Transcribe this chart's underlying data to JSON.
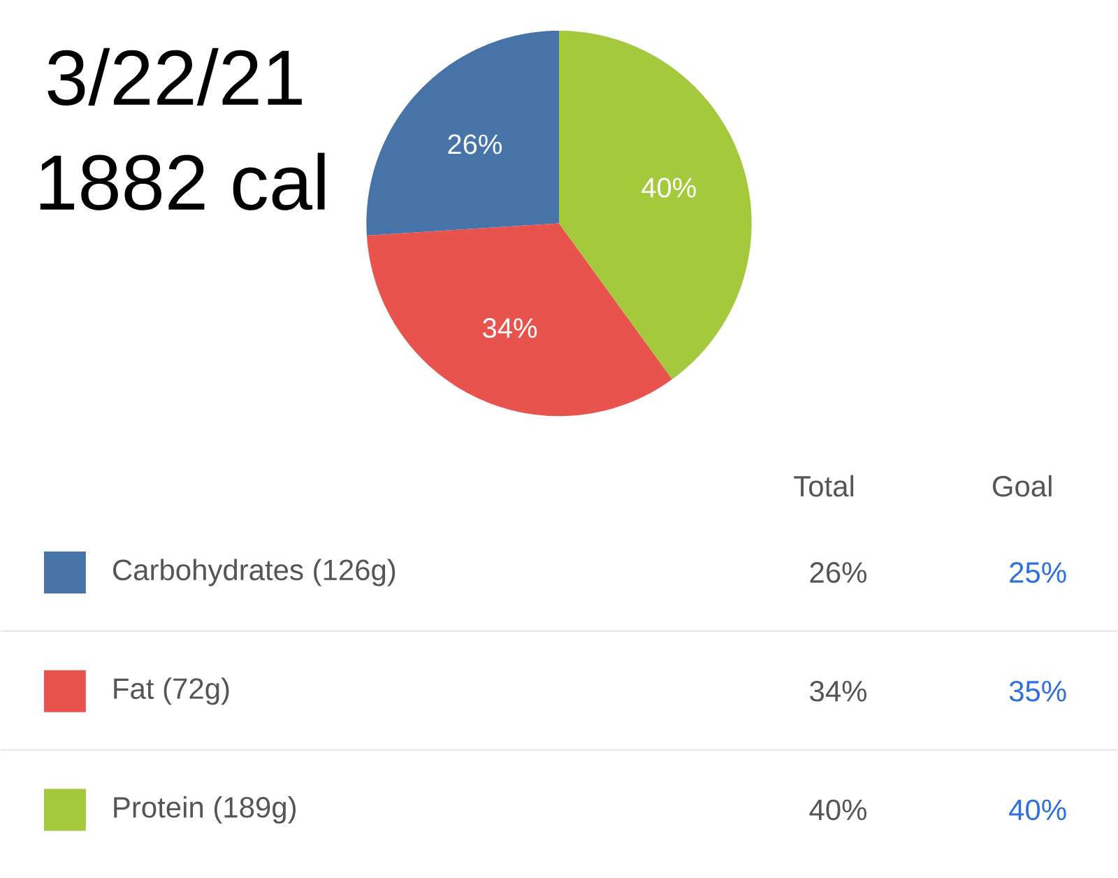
{
  "chart_data": {
    "type": "pie",
    "title": "3/22/21",
    "subtitle": "1882 cal",
    "categories": [
      "Carbohydrates (126g)",
      "Fat (72g)",
      "Protein (189g)"
    ],
    "values": [
      26,
      34,
      40
    ],
    "colors": [
      "#4674a8",
      "#e9534e",
      "#a5c93d"
    ],
    "value_labels": [
      "26%",
      "34%",
      "40%"
    ],
    "legend": "bottom",
    "annotations": [
      "Total",
      "Goal",
      "25%",
      "35%",
      "40%"
    ]
  }
}
